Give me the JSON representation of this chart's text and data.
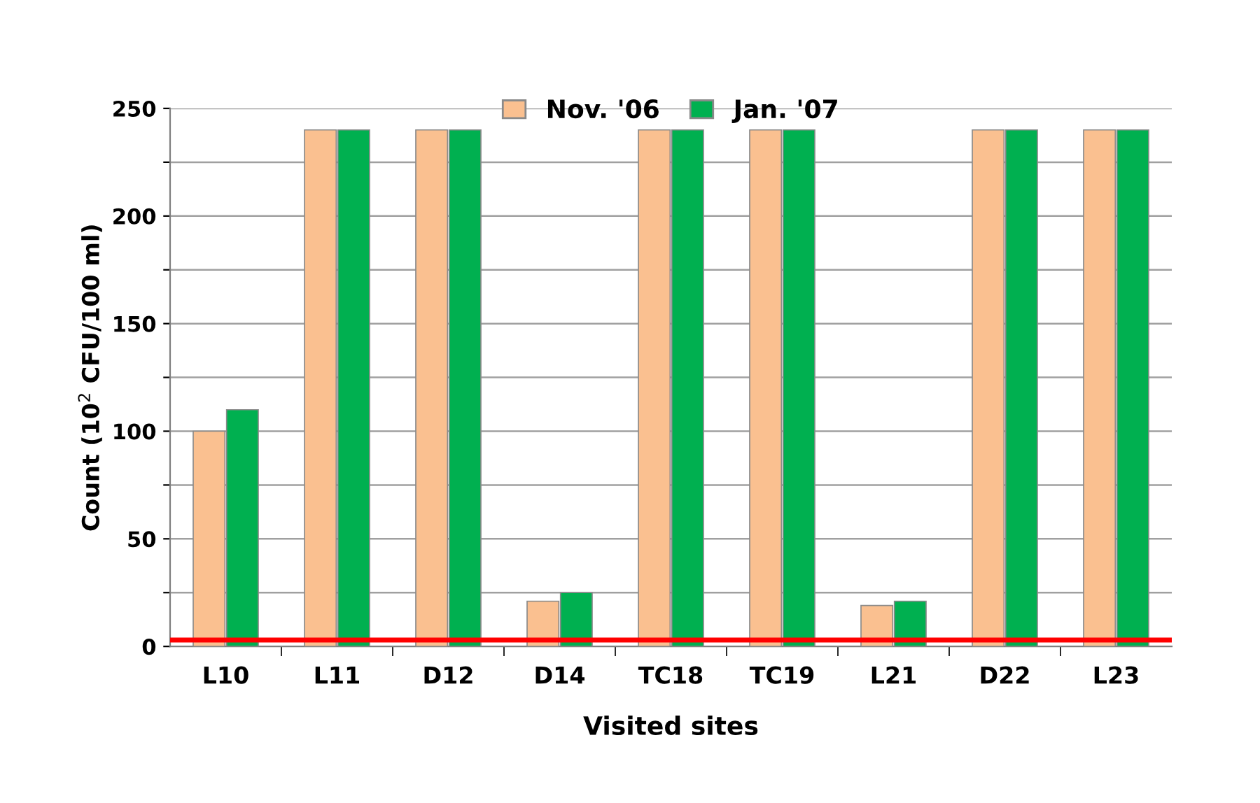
{
  "chart_data": {
    "type": "bar",
    "xlabel": "Visited sites",
    "ylabel": "Count (10$^{2}$ CFU/100 ml)",
    "categories": [
      "L10",
      "L11",
      "D12",
      "D14",
      "TC18",
      "TC19",
      "L21",
      "D22",
      "L23"
    ],
    "series": [
      {
        "name": "Nov. '06",
        "color": "#fac090",
        "values": [
          100,
          240,
          240,
          21,
          240,
          240,
          19,
          240,
          240
        ]
      },
      {
        "name": "Jan. '07",
        "color": "#00b050",
        "values": [
          110,
          240,
          240,
          25,
          240,
          240,
          21,
          240,
          240
        ]
      }
    ],
    "ylim": [
      0,
      250
    ],
    "yticks": [
      0,
      {
        "value": 25,
        "label": null
      },
      50,
      {
        "value": 75,
        "label": null
      },
      100,
      {
        "value": 125,
        "label": null
      },
      150,
      {
        "value": 175,
        "label": null
      },
      200,
      {
        "value": 225,
        "label": null
      },
      250
    ],
    "ref_lines": [
      {
        "axis": "y",
        "value": 3,
        "color": "#ff0000"
      }
    ],
    "grid": "y",
    "legend": "top"
  }
}
